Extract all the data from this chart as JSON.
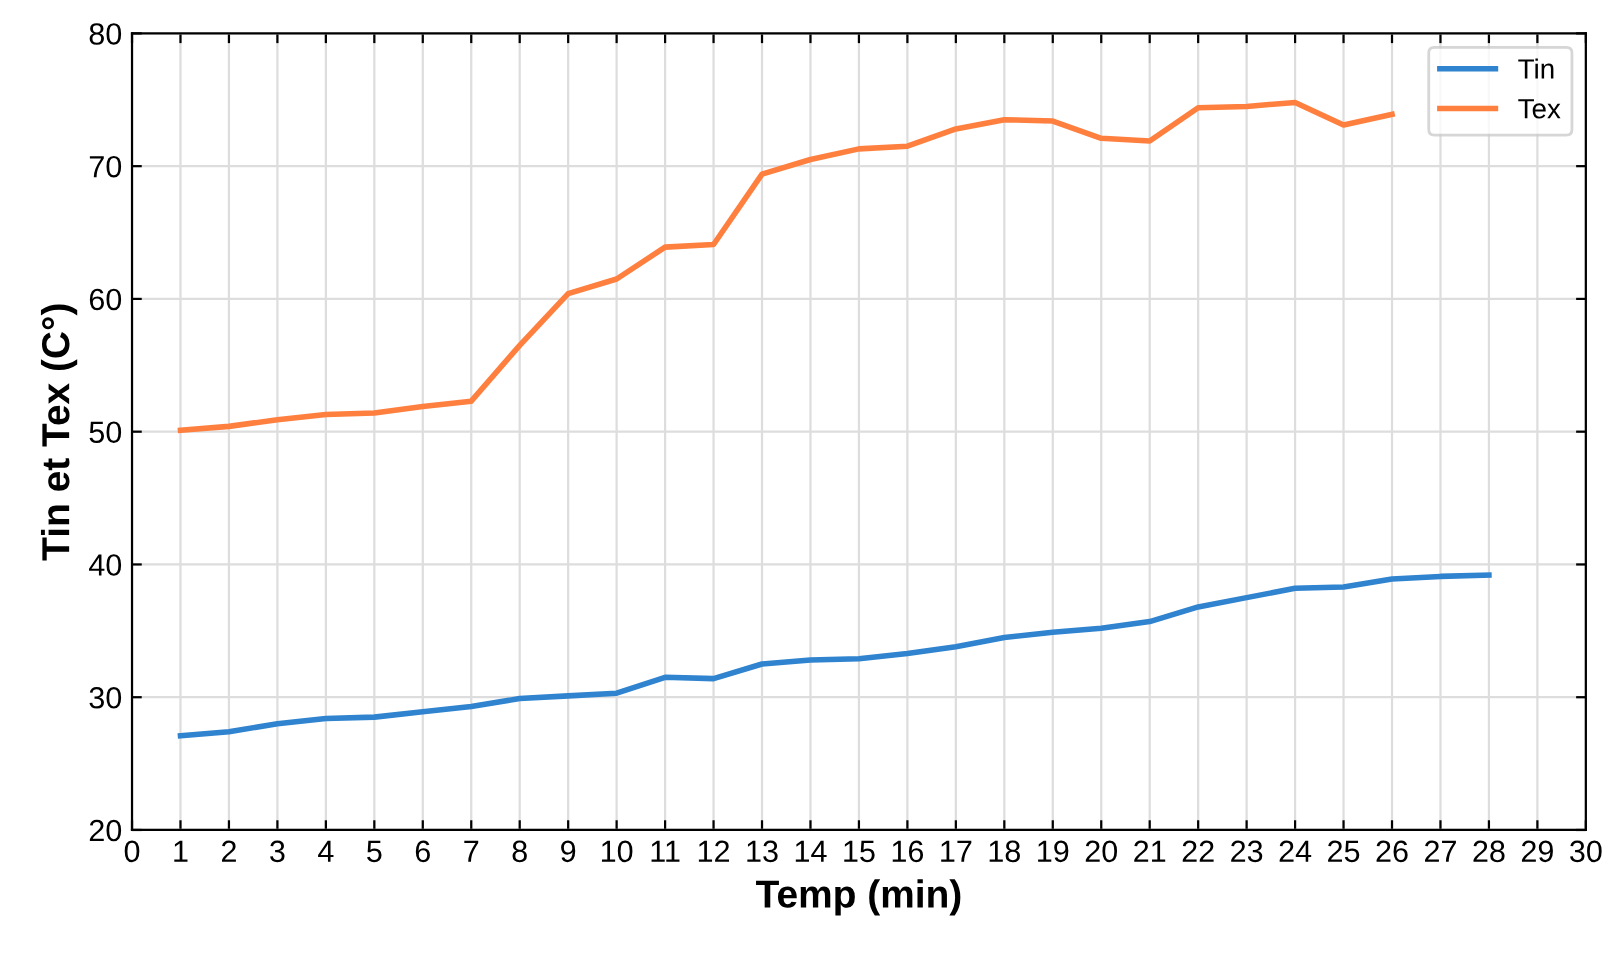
{
  "chart_data": {
    "type": "line",
    "xlabel": "Temp (min)",
    "ylabel": "Tin et Tex (C°)",
    "x": [
      1,
      2,
      3,
      4,
      5,
      6,
      7,
      8,
      9,
      10,
      11,
      12,
      13,
      14,
      15,
      16,
      17,
      18,
      19,
      20,
      21,
      22,
      23,
      24,
      25,
      26,
      27,
      28
    ],
    "series": [
      {
        "name": "Tin",
        "color": "#2f83cf",
        "values": [
          27.1,
          27.4,
          28.0,
          28.4,
          28.5,
          28.9,
          29.3,
          29.9,
          30.1,
          30.3,
          31.5,
          31.4,
          32.5,
          32.8,
          32.9,
          33.3,
          33.8,
          34.5,
          34.9,
          35.2,
          35.7,
          36.8,
          37.5,
          38.2,
          38.3,
          38.9,
          39.1,
          39.2
        ]
      },
      {
        "name": "Tex",
        "color": "#ff7f3f",
        "values": [
          50.1,
          50.4,
          50.9,
          51.3,
          51.4,
          51.9,
          52.3,
          56.5,
          60.4,
          61.5,
          63.9,
          64.1,
          69.4,
          70.5,
          71.3,
          71.5,
          72.8,
          73.5,
          73.4,
          72.1,
          71.9,
          74.4,
          74.5,
          74.8,
          73.1,
          73.9,
          null,
          null
        ]
      }
    ],
    "xlim": [
      0,
      30
    ],
    "xticks": [
      0,
      1,
      2,
      3,
      4,
      5,
      6,
      7,
      8,
      9,
      10,
      11,
      12,
      13,
      14,
      15,
      16,
      17,
      18,
      19,
      20,
      21,
      22,
      23,
      24,
      25,
      26,
      27,
      28,
      29,
      30
    ],
    "ylim": [
      20,
      80
    ],
    "yticks": [
      20,
      30,
      40,
      50,
      60,
      70,
      80
    ],
    "grid": true,
    "legend": "top right",
    "marker": "none",
    "line_style": "solid"
  }
}
